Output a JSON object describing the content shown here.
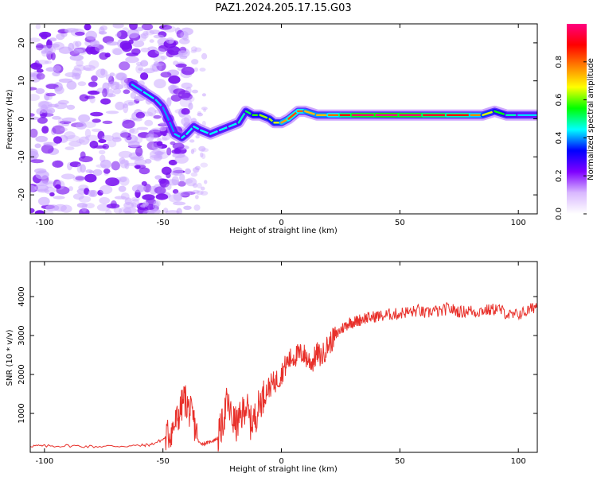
{
  "figure": {
    "title": "PAZ1.2024.205.17.15.G03"
  },
  "chart_data": [
    {
      "type": "heatmap",
      "title": "PAZ1.2024.205.17.15.G03",
      "xlabel": "Height of straight line (km)",
      "ylabel": "Frequency (Hz)",
      "xlim": [
        -106,
        108
      ],
      "ylim": [
        -25,
        25
      ],
      "xticks": [
        -100,
        -50,
        0,
        50,
        100
      ],
      "yticks": [
        20,
        10,
        0,
        -10,
        -20
      ],
      "grid": false,
      "colorbar": {
        "label": "Normalized spectral amplitude",
        "range": [
          0,
          1
        ],
        "ticks": [
          "0.0",
          "0.2",
          "0.4",
          "0.6",
          "0.8"
        ],
        "colormap": [
          "#ffffff",
          "#d9b8ff",
          "#7f00ff",
          "#0000ff",
          "#00ffff",
          "#00ff00",
          "#ffff00",
          "#ff8000",
          "#ff0000",
          "#ff0080"
        ]
      },
      "ridge": {
        "x": [
          -63,
          -58,
          -53,
          -50,
          -47,
          -45,
          -42,
          -40,
          -37,
          -34,
          -30,
          -26,
          -22,
          -18,
          -15,
          -12,
          -9,
          -5,
          -3,
          0,
          3,
          7,
          10,
          15,
          20,
          25,
          30,
          40,
          50,
          60,
          70,
          80,
          85,
          90,
          95,
          100,
          108
        ],
        "y": [
          9,
          7,
          5,
          3,
          -1,
          -4,
          -5,
          -4,
          -2,
          -3,
          -4,
          -3,
          -2,
          -1,
          2,
          1,
          1,
          0,
          -1,
          -1,
          0,
          2,
          2,
          1,
          1,
          1,
          1,
          1,
          1,
          1,
          1,
          1,
          1,
          2,
          1,
          1,
          1
        ],
        "amp": [
          0.4,
          0.45,
          0.45,
          0.4,
          0.4,
          0.4,
          0.45,
          0.45,
          0.45,
          0.45,
          0.45,
          0.45,
          0.45,
          0.45,
          0.5,
          0.55,
          0.6,
          0.65,
          0.6,
          0.7,
          0.8,
          0.85,
          0.75,
          0.7,
          0.75,
          0.85,
          0.95,
          1.0,
          1.0,
          0.95,
          0.9,
          0.85,
          0.7,
          0.6,
          0.5,
          0.45,
          0.4
        ]
      }
    },
    {
      "type": "line",
      "title": "",
      "xlabel": "Height of straight line (km)",
      "ylabel": "SNR (10 * v/v)",
      "xlim": [
        -106,
        108
      ],
      "ylim": [
        0,
        4900
      ],
      "xticks": [
        -100,
        -50,
        0,
        50,
        100
      ],
      "yticks": [
        1000,
        2000,
        3000,
        4000
      ],
      "grid": false,
      "color": "#e8302a",
      "x": [
        -106,
        -100,
        -90,
        -80,
        -70,
        -60,
        -55,
        -50,
        -47,
        -45,
        -43,
        -41,
        -39,
        -37,
        -35,
        -33,
        -31,
        -29,
        -27,
        -25,
        -23,
        -21,
        -19,
        -17,
        -15,
        -13,
        -11,
        -9,
        -7,
        -5,
        -3,
        -1,
        1,
        3,
        5,
        7,
        9,
        11,
        13,
        15,
        17,
        19,
        21,
        23,
        25,
        27,
        29,
        31,
        33,
        35,
        37,
        40,
        43,
        46,
        49,
        52,
        55,
        58,
        61,
        64,
        67,
        70,
        73,
        76,
        79,
        82,
        85,
        88,
        91,
        94,
        97,
        100,
        103,
        106,
        108
      ],
      "y": [
        170,
        160,
        170,
        150,
        160,
        170,
        200,
        330,
        500,
        700,
        1000,
        1400,
        1100,
        800,
        260,
        220,
        250,
        300,
        350,
        700,
        1300,
        900,
        700,
        900,
        1250,
        750,
        900,
        1300,
        1500,
        1700,
        1800,
        1900,
        2150,
        2350,
        2450,
        2500,
        2550,
        2400,
        2300,
        2550,
        2450,
        2700,
        2850,
        3000,
        3150,
        3250,
        3350,
        3350,
        3400,
        3450,
        3450,
        3500,
        3500,
        3550,
        3550,
        3600,
        3600,
        3650,
        3550,
        3650,
        3600,
        3700,
        3650,
        3600,
        3650,
        3600,
        3650,
        3650,
        3700,
        3600,
        3500,
        3550,
        3600,
        3700,
        3800
      ]
    }
  ]
}
